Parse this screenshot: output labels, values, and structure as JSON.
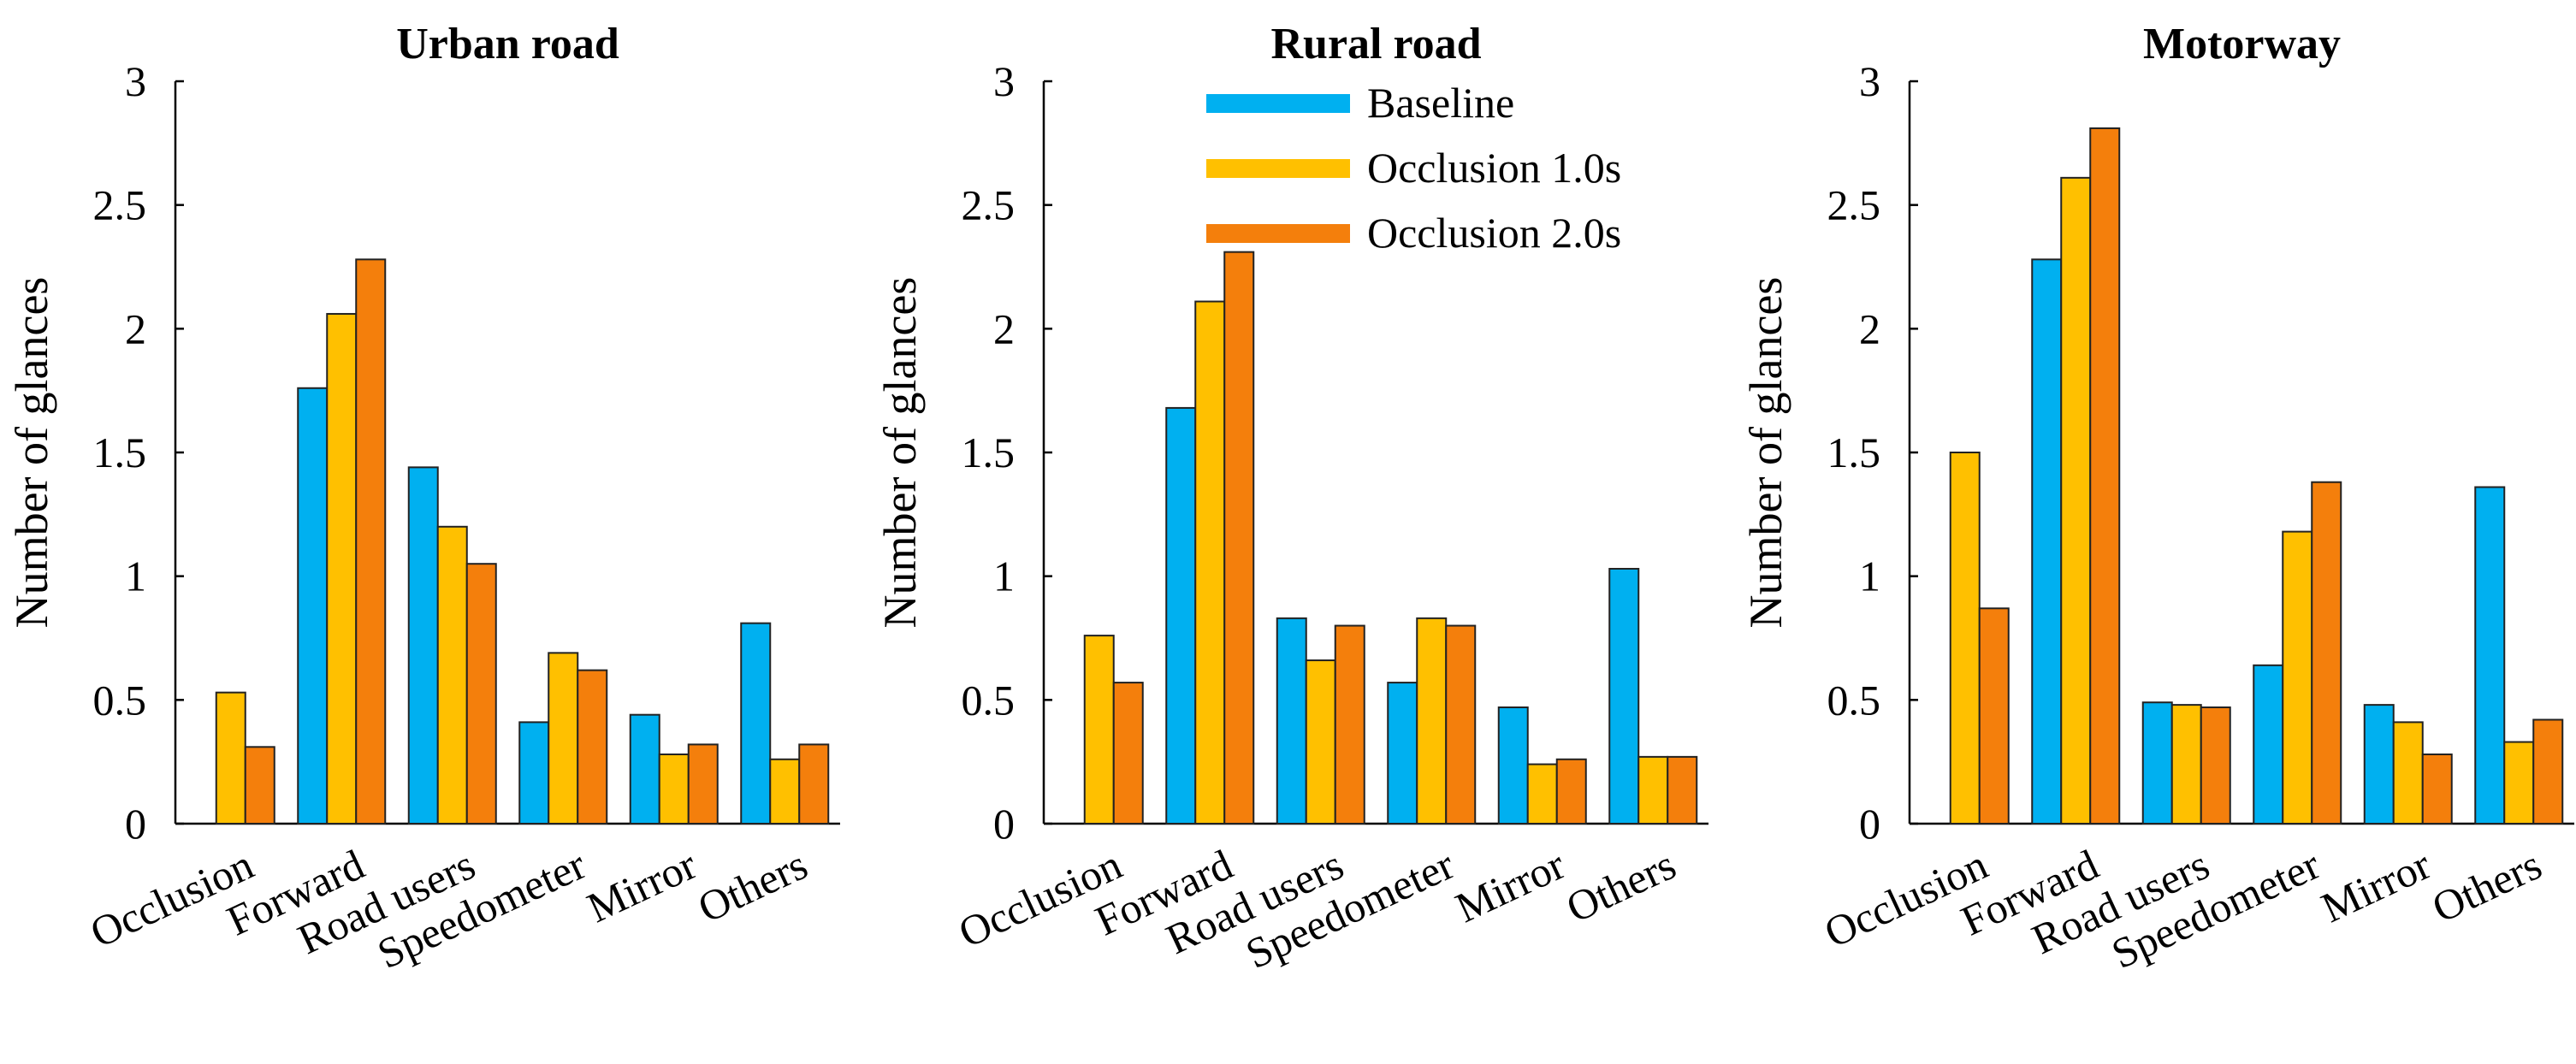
{
  "chart_data": [
    {
      "type": "bar",
      "title": "Urban road",
      "xlabel": "",
      "ylabel": "Number of glances",
      "ylim": [
        0,
        3
      ],
      "yticks": [
        "0",
        "0.5",
        "1",
        "1.5",
        "2",
        "2.5",
        "3"
      ],
      "categories": [
        "Occlusion",
        "Forward",
        "Road users",
        "Speedometer",
        "Mirror",
        "Others"
      ],
      "series": [
        {
          "name": "Baseline",
          "color": "#00B0F0",
          "values": [
            0,
            1.76,
            1.44,
            0.41,
            0.44,
            0.81
          ]
        },
        {
          "name": "Occlusion 1.0s",
          "color": "#FFC000",
          "values": [
            0.53,
            2.06,
            1.2,
            0.69,
            0.28,
            0.26
          ]
        },
        {
          "name": "Occlusion 2.0s",
          "color": "#F47F0C",
          "values": [
            0.31,
            2.28,
            1.05,
            0.62,
            0.32,
            0.32
          ]
        }
      ],
      "legend": false
    },
    {
      "type": "bar",
      "title": "Rural road",
      "xlabel": "",
      "ylabel": "Number of glances",
      "ylim": [
        0,
        3
      ],
      "yticks": [
        "0",
        "0.5",
        "1",
        "1.5",
        "2",
        "2.5",
        "3"
      ],
      "categories": [
        "Occlusion",
        "Forward",
        "Road users",
        "Speedometer",
        "Mirror",
        "Others"
      ],
      "series": [
        {
          "name": "Baseline",
          "color": "#00B0F0",
          "values": [
            0,
            1.68,
            0.83,
            0.57,
            0.47,
            1.03
          ]
        },
        {
          "name": "Occlusion 1.0s",
          "color": "#FFC000",
          "values": [
            0.76,
            2.11,
            0.66,
            0.83,
            0.24,
            0.27
          ]
        },
        {
          "name": "Occlusion 2.0s",
          "color": "#F47F0C",
          "values": [
            0.57,
            2.31,
            0.8,
            0.8,
            0.26,
            0.27
          ]
        }
      ],
      "legend": true,
      "legend_position": "top-right"
    },
    {
      "type": "bar",
      "title": "Motorway",
      "xlabel": "",
      "ylabel": "Number of glances",
      "ylim": [
        0,
        3
      ],
      "yticks": [
        "0",
        "0.5",
        "1",
        "1.5",
        "2",
        "2.5",
        "3"
      ],
      "categories": [
        "Occlusion",
        "Forward",
        "Road users",
        "Speedometer",
        "Mirror",
        "Others"
      ],
      "series": [
        {
          "name": "Baseline",
          "color": "#00B0F0",
          "values": [
            0,
            2.28,
            0.49,
            0.64,
            0.48,
            1.36
          ]
        },
        {
          "name": "Occlusion 1.0s",
          "color": "#FFC000",
          "values": [
            1.5,
            2.61,
            0.48,
            1.18,
            0.41,
            0.33
          ]
        },
        {
          "name": "Occlusion 2.0s",
          "color": "#F47F0C",
          "values": [
            0.87,
            2.81,
            0.47,
            1.38,
            0.28,
            0.42
          ]
        }
      ],
      "legend": false
    }
  ]
}
